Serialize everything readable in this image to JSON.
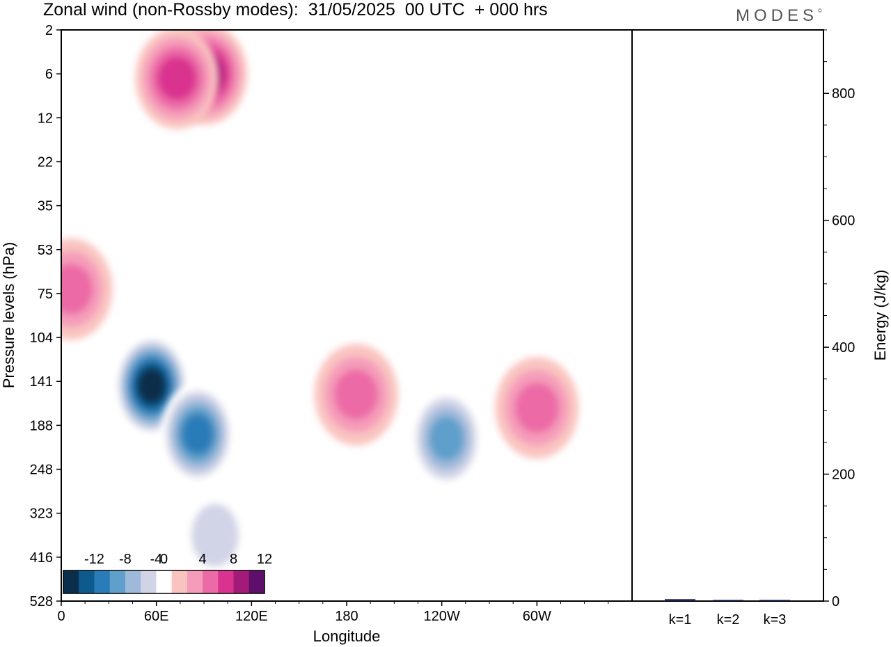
{
  "title": "Zonal wind (non-Rossby modes):  31/05/2025  00 UTC  + 000 hrs",
  "brand": "MODES",
  "brand_mark": "©",
  "chart_data": [
    {
      "type": "heatmap",
      "variable": "Zonal wind (non-Rossby modes)",
      "xlabel": "Longitude",
      "ylabel": "Pressure levels (hPa)",
      "x_ticks": [
        "0",
        "60E",
        "120E",
        "180",
        "120W",
        "60W"
      ],
      "x_range_deg": [
        0,
        360
      ],
      "y_ticks": [
        "2",
        "6",
        "12",
        "22",
        "35",
        "53",
        "75",
        "104",
        "141",
        "188",
        "248",
        "323",
        "416",
        "528"
      ],
      "colorbar": {
        "labels": [
          "-12",
          "-8",
          "-4",
          "0",
          "4",
          "8",
          "12"
        ],
        "levels": [
          -14,
          -12,
          -10,
          -8,
          -6,
          -4,
          -2,
          2,
          4,
          6,
          8,
          10,
          12,
          14
        ],
        "colors": [
          "#0b2f4b",
          "#0f5a8c",
          "#2a7cb8",
          "#5f9fcb",
          "#9eb9da",
          "#d1d4e6",
          "#ffffff",
          "#f9c4c0",
          "#f59cba",
          "#ec6aa6",
          "#d9338f",
          "#a31a78",
          "#5e0f6b"
        ]
      },
      "features": [
        {
          "name": "easterly core",
          "lon": 57,
          "level_index": 8.1,
          "value": -14
        },
        {
          "name": "easterly core",
          "lon": 86,
          "level_index": 9.2,
          "value": -10
        },
        {
          "name": "easterly jet extension",
          "lon": 97,
          "level_index": 11.5,
          "value": -4
        },
        {
          "name": "easterly patch",
          "lon": 243,
          "level_index": 9.3,
          "value": -8
        },
        {
          "name": "westerly maximum",
          "lon": 186,
          "level_index": 8.3,
          "value": 6
        },
        {
          "name": "westerly maximum",
          "lon": 300,
          "level_index": 8.6,
          "value": 6
        },
        {
          "name": "westerly upper jet",
          "lon": 91,
          "level_index": 1.0,
          "value": 10
        },
        {
          "name": "westerly upper jet",
          "lon": 73,
          "level_index": 1.1,
          "value": 8
        },
        {
          "name": "westerly patch",
          "lon": 6,
          "level_index": 5.9,
          "value": 6
        }
      ]
    },
    {
      "type": "bar",
      "categories": [
        "k=1",
        "k=2",
        "k=3"
      ],
      "values": [
        3,
        2,
        2
      ],
      "ylabel": "Energy (J/kg)",
      "ylim": [
        0,
        900
      ],
      "y_ticks": [
        0,
        200,
        400,
        600,
        800
      ],
      "bar_color": "#1a1f5e"
    }
  ]
}
